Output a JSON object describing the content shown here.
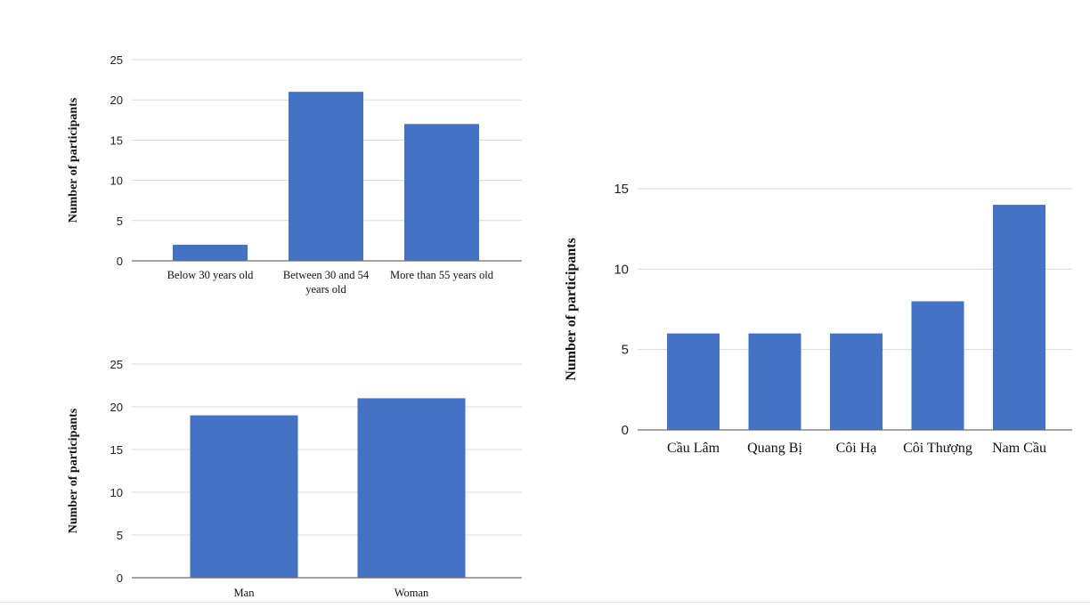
{
  "colors": {
    "bar": "#4472c4",
    "grid": "#d9d9d9",
    "axis": "#6e6e6e"
  },
  "chart_data": [
    {
      "type": "bar",
      "title": "",
      "xlabel": "",
      "ylabel": "Number of participants",
      "ylim": [
        0,
        25
      ],
      "yticks": [
        0,
        5,
        10,
        15,
        20,
        25
      ],
      "grid": true,
      "categories": [
        [
          "Below 30 years old"
        ],
        [
          "Between 30 and 54",
          "years old"
        ],
        [
          "More than 55 years old"
        ]
      ],
      "values": [
        2,
        21,
        17
      ]
    },
    {
      "type": "bar",
      "title": "",
      "xlabel": "",
      "ylabel": "Number of participants",
      "ylim": [
        0,
        25
      ],
      "yticks": [
        0,
        5,
        10,
        15,
        20,
        25
      ],
      "grid": true,
      "categories": [
        [
          "Man"
        ],
        [
          "Woman"
        ]
      ],
      "values": [
        19,
        21
      ]
    },
    {
      "type": "bar",
      "title": "",
      "xlabel": "",
      "ylabel": "Number of participants",
      "ylim": [
        0,
        15
      ],
      "yticks": [
        0,
        5,
        10,
        15
      ],
      "grid": true,
      "categories": [
        [
          "Cầu Lâm"
        ],
        [
          "Quang Bị"
        ],
        [
          "Côi Hạ"
        ],
        [
          "Côi Thượng"
        ],
        [
          "Nam Cầu"
        ]
      ],
      "values": [
        6,
        6,
        6,
        8,
        14
      ]
    }
  ]
}
